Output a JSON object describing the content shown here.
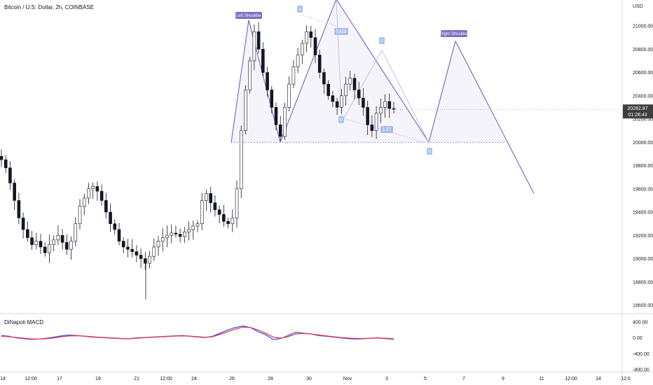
{
  "header": {
    "title": "Bitcoin / U.S. Dollar, 2h, COINBASE"
  },
  "macd": {
    "title": "DiNapoli MACD"
  },
  "price_readout": {
    "price": "20282.87",
    "countdown": "01:28:43"
  },
  "colors": {
    "up": "#131722",
    "down": "#131722",
    "pattern": "#7e6fc6",
    "macd": "#2962ff",
    "signal": "#f23645",
    "price_badge": "#3d3d3d"
  },
  "chart_data": [
    {
      "type": "candlestick",
      "title": "Bitcoin / U.S. Dollar, 2h, COINBASE",
      "ylabel": "USD",
      "ylim": [
        18500,
        21250
      ],
      "yticks": [
        "21000.00",
        "20800.00",
        "20600.00",
        "20400.00",
        "20200.00",
        "20000.00",
        "19800.00",
        "19600.00",
        "19400.00",
        "19200.00",
        "19000.00",
        "18800.00",
        "18600.00"
      ],
      "ytick_values": [
        21000,
        20800,
        20600,
        20400,
        20200,
        20000,
        19800,
        19600,
        19400,
        19200,
        19000,
        18800,
        18600
      ],
      "xticks": [
        "14",
        "12:00",
        "17",
        "19",
        "21",
        "12:00",
        "24",
        "26",
        "28",
        "30",
        "Nov",
        "3",
        "5",
        "7",
        "9",
        "11",
        "12:00",
        "14",
        "12:0"
      ],
      "close_series": [
        19850,
        19780,
        19650,
        19500,
        19350,
        19250,
        19180,
        19120,
        19150,
        19100,
        19050,
        19120,
        19160,
        19200,
        19140,
        19080,
        19150,
        19300,
        19450,
        19520,
        19600,
        19620,
        19580,
        19500,
        19400,
        19300,
        19250,
        19150,
        19100,
        19080,
        19060,
        19030,
        19000,
        18960,
        19020,
        19100,
        19150,
        19180,
        19200,
        19220,
        19210,
        19190,
        19230,
        19250,
        19280,
        19300,
        19500,
        19560,
        19480,
        19420,
        19380,
        19320,
        19300,
        19350,
        19600,
        20100,
        20450,
        20700,
        20950,
        20800,
        20600,
        20450,
        20300,
        20150,
        20050,
        20300,
        20500,
        20650,
        20750,
        20850,
        20950,
        20900,
        20750,
        20600,
        20500,
        20400,
        20350,
        20300,
        20400,
        20500,
        20550,
        20450,
        20380,
        20300,
        20150,
        20100,
        20250,
        20300,
        20350,
        20290,
        20282.87
      ],
      "pattern_labels": [
        "Left Shoulder",
        "Right Shoulder",
        "A",
        "B",
        "C",
        "D",
        "0.618",
        "1.27",
        "0"
      ],
      "pattern_points": [
        {
          "label": "Left Shoulder",
          "price": 21050
        },
        {
          "label": "Right Shoulder",
          "price": 20870
        },
        {
          "label": "A",
          "price": 21190
        },
        {
          "label": "B",
          "price": 20180
        },
        {
          "label": "C",
          "price": 20790
        },
        {
          "label": "D",
          "price": 20000
        }
      ],
      "neckline": 20000,
      "current_price": 20282.87
    },
    {
      "type": "line",
      "title": "DiNapoli MACD",
      "ylim": [
        -800,
        400
      ],
      "yticks": [
        "400.00",
        "0.00",
        "-400.00",
        "-800.00"
      ],
      "ytick_values": [
        400,
        0,
        -400,
        -800
      ],
      "series": [
        {
          "values": [
            60,
            40,
            0,
            -20,
            -40,
            -30,
            -10,
            20,
            50,
            70,
            60,
            40,
            20,
            10,
            0,
            -10,
            -20,
            -20,
            0,
            10,
            20,
            30,
            40,
            50,
            60,
            40,
            20,
            10,
            40,
            120,
            200,
            260,
            300,
            260,
            160,
            80,
            -40,
            -20,
            60,
            140,
            120,
            100,
            60,
            40,
            20,
            0,
            -20,
            -30,
            -20,
            -10,
            0,
            -20,
            -40
          ]
        },
        {
          "values": [
            40,
            30,
            10,
            -10,
            -25,
            -30,
            -20,
            0,
            30,
            50,
            55,
            45,
            30,
            15,
            5,
            -5,
            -15,
            -20,
            -10,
            5,
            15,
            25,
            35,
            45,
            50,
            45,
            30,
            15,
            30,
            90,
            160,
            220,
            270,
            260,
            200,
            120,
            20,
            -10,
            30,
            100,
            110,
            100,
            75,
            50,
            30,
            10,
            -5,
            -15,
            -15,
            -10,
            -5,
            -10,
            -25
          ]
        }
      ]
    }
  ]
}
